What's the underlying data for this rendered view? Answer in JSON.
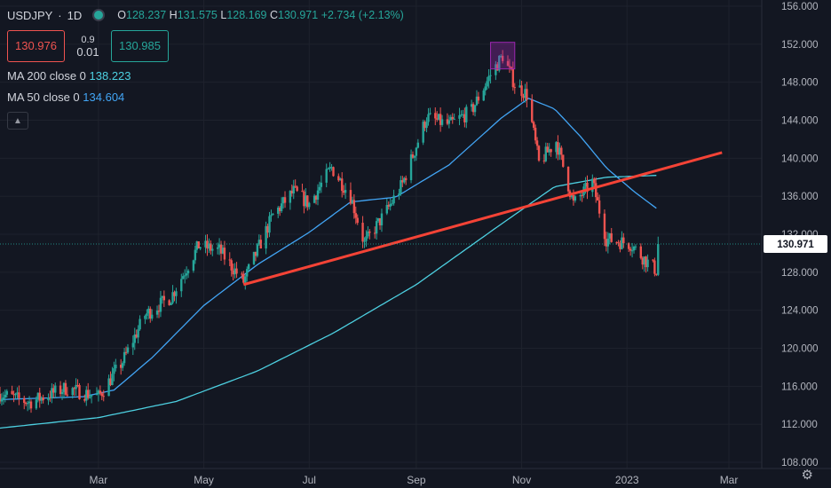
{
  "header": {
    "symbol": "USDJPY",
    "interval": "1D",
    "open_label": "O",
    "open": "128.237",
    "high_label": "H",
    "high": "131.575",
    "low_label": "L",
    "low": "128.169",
    "close_label": "C",
    "close": "130.971",
    "change": "+2.734 (+2.13%)"
  },
  "trade": {
    "sell_price": "130.976",
    "spread_top": "0.9",
    "spread_bottom": "0.01",
    "buy_price": "130.985"
  },
  "indicators": [
    {
      "label": "MA 200 close 0",
      "value": "138.223",
      "color": "#4dd0e1"
    },
    {
      "label": "MA 50 close 0",
      "value": "134.604",
      "color": "#42a5f5"
    }
  ],
  "colors": {
    "background": "#131722",
    "up": "#26a69a",
    "down": "#ef5350",
    "trendline": "#f44336",
    "box": "#9c27b0",
    "ma200": "#4dd0e1",
    "ma50": "#42a5f5",
    "price_tag": "#ffffff"
  },
  "icons": {
    "status": "market-open-dot",
    "collapse": "chevron-up-icon",
    "settings": "gear-icon"
  },
  "chart_data": {
    "type": "candlestick",
    "ylim": [
      108,
      156
    ],
    "y_ticks": [
      "156.000",
      "152.000",
      "148.000",
      "144.000",
      "140.000",
      "136.000",
      "132.000",
      "128.000",
      "124.000",
      "120.000",
      "116.000",
      "112.000",
      "108.000"
    ],
    "x_ticks": [
      "Mar",
      "May",
      "Jul",
      "Sep",
      "Nov",
      "2023",
      "Mar"
    ],
    "last_price_label": "130.971",
    "price_path": [
      [
        "2022-01-03",
        115.2
      ],
      [
        "2022-01-20",
        114.3
      ],
      [
        "2022-02-10",
        115.8
      ],
      [
        "2022-03-01",
        114.9
      ],
      [
        "2022-03-15",
        118.6
      ],
      [
        "2022-03-28",
        123.5
      ],
      [
        "2022-04-12",
        125.4
      ],
      [
        "2022-04-28",
        130.8
      ],
      [
        "2022-05-10",
        130.3
      ],
      [
        "2022-05-24",
        127.0
      ],
      [
        "2022-06-10",
        134.0
      ],
      [
        "2022-06-22",
        136.5
      ],
      [
        "2022-07-01",
        135.2
      ],
      [
        "2022-07-14",
        139.0
      ],
      [
        "2022-07-25",
        136.0
      ],
      [
        "2022-08-02",
        131.0
      ],
      [
        "2022-08-15",
        134.5
      ],
      [
        "2022-08-24",
        137.3
      ],
      [
        "2022-09-07",
        144.3
      ],
      [
        "2022-09-20",
        143.5
      ],
      [
        "2022-10-03",
        145.0
      ],
      [
        "2022-10-14",
        148.8
      ],
      [
        "2022-10-21",
        150.8
      ],
      [
        "2022-10-28",
        147.8
      ],
      [
        "2022-11-04",
        146.7
      ],
      [
        "2022-11-11",
        139.5
      ],
      [
        "2022-11-21",
        141.8
      ],
      [
        "2022-12-01",
        135.2
      ],
      [
        "2022-12-12",
        137.5
      ],
      [
        "2022-12-20",
        131.5
      ],
      [
        "2023-01-03",
        131.0
      ],
      [
        "2023-01-12",
        129.2
      ],
      [
        "2023-01-18",
        128.2
      ],
      [
        "2023-01-19",
        130.97
      ]
    ],
    "ma50": [
      [
        "2022-01-03",
        114.6
      ],
      [
        "2022-02-20",
        114.9
      ],
      [
        "2022-03-10",
        115.6
      ],
      [
        "2022-04-01",
        119.0
      ],
      [
        "2022-05-01",
        124.5
      ],
      [
        "2022-06-01",
        128.8
      ],
      [
        "2022-07-01",
        132.2
      ],
      [
        "2022-07-25",
        135.4
      ],
      [
        "2022-08-20",
        135.9
      ],
      [
        "2022-09-20",
        139.3
      ],
      [
        "2022-10-20",
        144.2
      ],
      [
        "2022-11-05",
        146.3
      ],
      [
        "2022-11-20",
        145.2
      ],
      [
        "2022-12-05",
        142.3
      ],
      [
        "2022-12-20",
        139.0
      ],
      [
        "2023-01-05",
        136.5
      ],
      [
        "2023-01-19",
        134.6
      ]
    ],
    "ma200": [
      [
        "2022-01-03",
        111.6
      ],
      [
        "2022-03-01",
        112.7
      ],
      [
        "2022-04-15",
        114.4
      ],
      [
        "2022-06-01",
        117.6
      ],
      [
        "2022-07-15",
        121.6
      ],
      [
        "2022-09-01",
        126.7
      ],
      [
        "2022-10-15",
        132.4
      ],
      [
        "2022-11-20",
        137.0
      ],
      [
        "2022-12-20",
        138.0
      ],
      [
        "2023-01-19",
        138.2
      ]
    ],
    "trendline": {
      "from": [
        "2022-05-24",
        126.7
      ],
      "to": [
        "2023-02-25",
        140.6
      ]
    },
    "highlight_box": {
      "from": [
        "2022-10-14",
        149.4
      ],
      "to": [
        "2022-10-28",
        152.2
      ]
    }
  }
}
